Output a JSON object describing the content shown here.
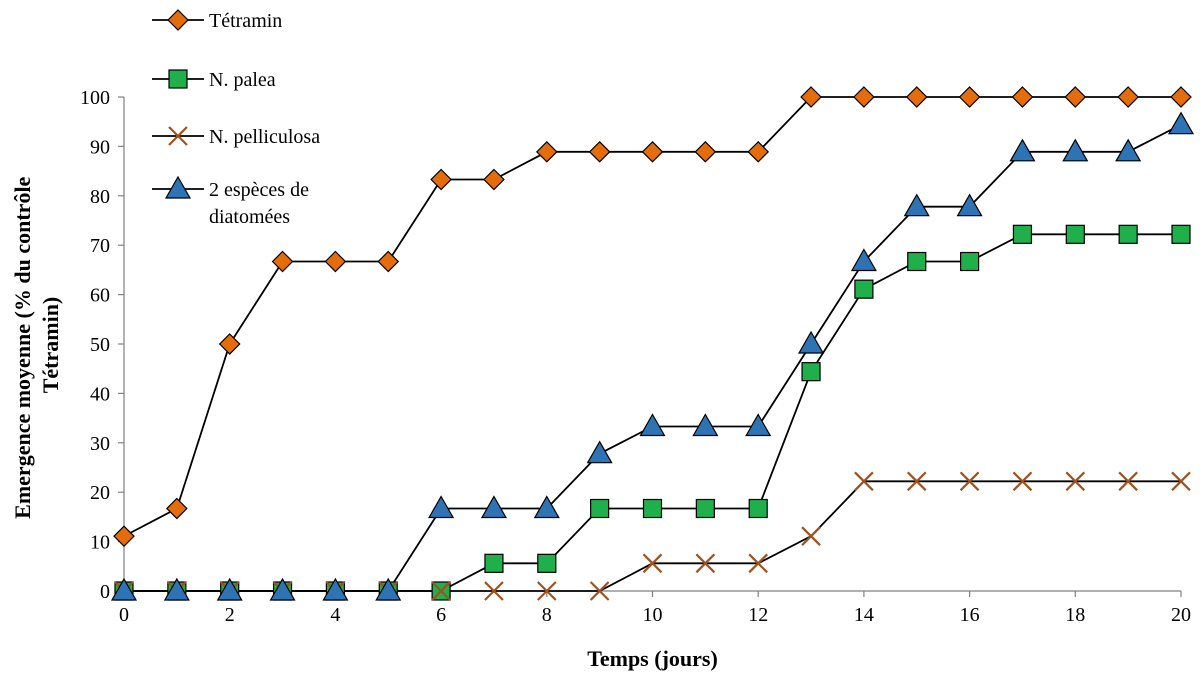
{
  "chart_data": {
    "type": "line",
    "title": "",
    "xlabel": "Temps (jours)",
    "ylabel_lines": [
      "Emergence moyenne (% du contrôle",
      "Tétramin)"
    ],
    "xlim": [
      0,
      20
    ],
    "ylim": [
      0,
      100
    ],
    "xticks": [
      0,
      2,
      4,
      6,
      8,
      10,
      12,
      14,
      16,
      18,
      20
    ],
    "yticks": [
      0,
      10,
      20,
      30,
      40,
      50,
      60,
      70,
      80,
      90,
      100
    ],
    "grid": false,
    "legend_position": "top-left",
    "x": [
      0,
      1,
      2,
      3,
      4,
      5,
      6,
      7,
      8,
      9,
      10,
      11,
      12,
      13,
      14,
      15,
      16,
      17,
      18,
      19,
      20
    ],
    "series": [
      {
        "name": "Tétramin",
        "legend_lines": [
          "Tétramin"
        ],
        "marker": "diamond",
        "color": "#E46C0A",
        "values": [
          11.1,
          16.7,
          50,
          66.7,
          66.7,
          66.7,
          83.3,
          83.3,
          88.9,
          88.9,
          88.9,
          88.9,
          88.9,
          100,
          100,
          100,
          100,
          100,
          100,
          100,
          100
        ]
      },
      {
        "name": "N. palea",
        "legend_lines": [
          "N. palea"
        ],
        "marker": "square",
        "color": "#1FB04C",
        "values": [
          0,
          0,
          0,
          0,
          0,
          0,
          0,
          5.6,
          5.6,
          16.7,
          16.7,
          16.7,
          16.7,
          44.4,
          61.1,
          66.7,
          66.7,
          72.2,
          72.2,
          72.2,
          72.2
        ]
      },
      {
        "name": "N. pelliculosa",
        "legend_lines": [
          "N. pelliculosa"
        ],
        "marker": "x",
        "color": "#A0521E",
        "values": [
          0,
          0,
          0,
          0,
          0,
          0,
          0,
          0,
          0,
          0,
          5.6,
          5.6,
          5.6,
          11.1,
          22.2,
          22.2,
          22.2,
          22.2,
          22.2,
          22.2,
          22.2
        ]
      },
      {
        "name": "2 espèces de diatomées",
        "legend_lines": [
          "2 espèces de",
          "diatomées"
        ],
        "marker": "triangle",
        "color": "#2E74B5",
        "values": [
          0,
          0,
          0,
          0,
          0,
          0,
          16.7,
          16.7,
          16.7,
          27.8,
          33.3,
          33.3,
          33.3,
          50,
          66.7,
          77.8,
          77.8,
          88.9,
          88.9,
          88.9,
          94.4
        ]
      }
    ]
  }
}
